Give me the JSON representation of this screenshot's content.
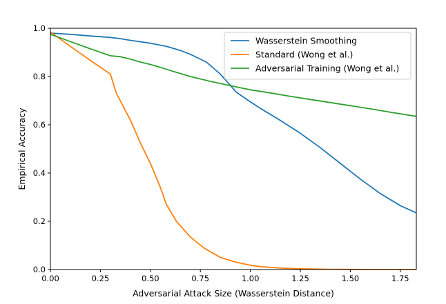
{
  "chart_data": {
    "type": "line",
    "title": "",
    "xlabel": "Adversarial Attack Size (Wasserstein Distance)",
    "ylabel": "Empirical Accuracy",
    "xlim": [
      0.0,
      1.83
    ],
    "ylim": [
      0.0,
      1.0
    ],
    "xticks": [
      0.0,
      0.25,
      0.5,
      0.75,
      1.0,
      1.25,
      1.5,
      1.75
    ],
    "xtick_labels": [
      "0.00",
      "0.25",
      "0.50",
      "0.75",
      "1.00",
      "1.25",
      "1.50",
      "1.75"
    ],
    "yticks": [
      0.0,
      0.2,
      0.4,
      0.6,
      0.8,
      1.0
    ],
    "ytick_labels": [
      "0.0",
      "0.2",
      "0.4",
      "0.6",
      "0.8",
      "1.0"
    ],
    "grid": false,
    "legend_position": "top-right",
    "series": [
      {
        "name": "Wasserstein Smoothing",
        "color": "#1f77b4",
        "x": [
          0.0,
          0.1,
          0.2,
          0.3,
          0.35,
          0.4,
          0.5,
          0.58,
          0.65,
          0.7,
          0.78,
          0.85,
          0.93,
          1.0,
          1.05,
          1.15,
          1.25,
          1.35,
          1.45,
          1.55,
          1.65,
          1.75,
          1.83
        ],
        "y": [
          0.98,
          0.975,
          0.968,
          0.962,
          0.957,
          0.95,
          0.938,
          0.925,
          0.908,
          0.892,
          0.86,
          0.81,
          0.735,
          0.695,
          0.668,
          0.618,
          0.565,
          0.505,
          0.44,
          0.375,
          0.315,
          0.265,
          0.235
        ]
      },
      {
        "name": "Standard (Wong et al.)",
        "color": "#ff7f0e",
        "x": [
          0.0,
          0.1,
          0.2,
          0.3,
          0.33,
          0.4,
          0.45,
          0.5,
          0.55,
          0.58,
          0.63,
          0.7,
          0.77,
          0.85,
          0.93,
          1.0,
          1.05,
          1.15,
          1.25,
          1.4,
          1.6,
          1.83
        ],
        "y": [
          0.985,
          0.925,
          0.867,
          0.81,
          0.73,
          0.62,
          0.525,
          0.44,
          0.34,
          0.27,
          0.2,
          0.135,
          0.088,
          0.05,
          0.03,
          0.018,
          0.012,
          0.006,
          0.003,
          0.001,
          0.0,
          0.0
        ]
      },
      {
        "name": "Adversarial Training (Wong et al.)",
        "color": "#2ca02c",
        "x": [
          0.0,
          0.1,
          0.2,
          0.3,
          0.35,
          0.4,
          0.45,
          0.5,
          0.55,
          0.6,
          0.7,
          0.8,
          0.9,
          1.0,
          1.1,
          1.2,
          1.3,
          1.4,
          1.5,
          1.6,
          1.7,
          1.83
        ],
        "y": [
          0.975,
          0.945,
          0.915,
          0.886,
          0.882,
          0.872,
          0.86,
          0.85,
          0.838,
          0.825,
          0.8,
          0.78,
          0.762,
          0.745,
          0.732,
          0.718,
          0.705,
          0.692,
          0.679,
          0.666,
          0.652,
          0.635
        ]
      }
    ]
  }
}
